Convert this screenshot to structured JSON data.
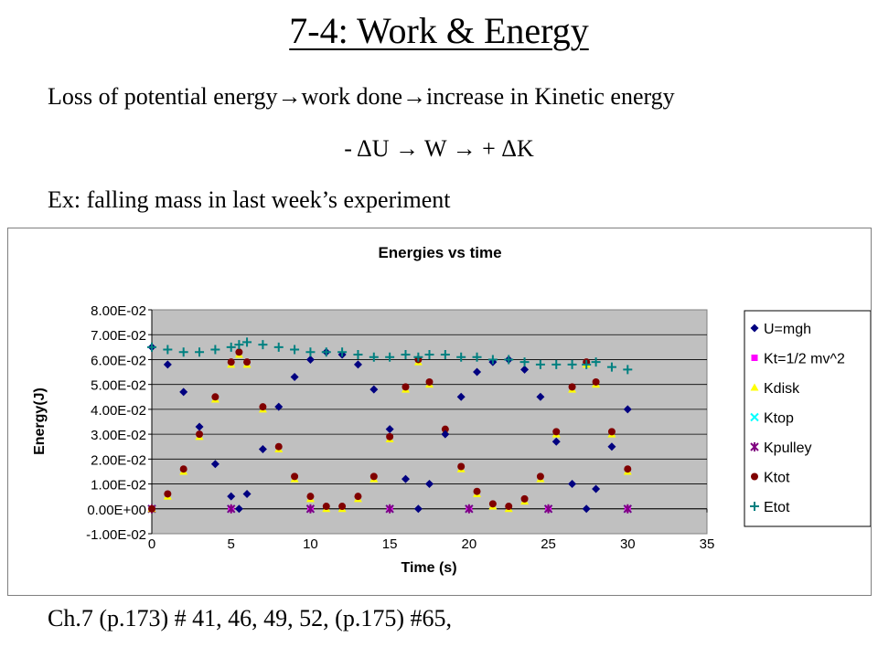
{
  "slide": {
    "title": "7-4: Work & Energy",
    "line1": "Loss of potential energy→work done→increase in Kinetic energy",
    "line2": "- ΔU → W → + ΔK",
    "line3": "Ex:  falling mass in last week’s experiment",
    "footer": "Ch.7 (p.173) # 41, 46, 49, 52, (p.175) #65,"
  },
  "chart_data": {
    "type": "scatter",
    "title": "Energies vs time",
    "xlabel": "Time (s)",
    "ylabel": "Energy(J)",
    "xlim": [
      0,
      35
    ],
    "ylim": [
      -0.01,
      0.08
    ],
    "xticks": [
      "0",
      "5",
      "10",
      "15",
      "20",
      "25",
      "30",
      "35"
    ],
    "yticks": [
      "-1.00E-02",
      "0.00E+00",
      "1.00E-02",
      "2.00E-02",
      "3.00E-02",
      "4.00E-02",
      "5.00E-02",
      "6.00E-02",
      "7.00E-02",
      "8.00E-02"
    ],
    "grid": "horizontal",
    "legend_position": "right",
    "plot_background": "#c0c0c0",
    "series": [
      {
        "name": "U=mgh",
        "marker": "diamond",
        "color": "#000080",
        "x": [
          0,
          1,
          2,
          3,
          4,
          5,
          5.5,
          6,
          7,
          8,
          9,
          10,
          11,
          12,
          13,
          14,
          15,
          16,
          16.8,
          17.5,
          18.5,
          19.5,
          20.5,
          21.5,
          22.5,
          23.5,
          24.5,
          25.5,
          26.5,
          27.4,
          28,
          29,
          30
        ],
        "y": [
          0.065,
          0.058,
          0.047,
          0.033,
          0.018,
          0.005,
          0.0,
          0.006,
          0.024,
          0.041,
          0.053,
          0.06,
          0.063,
          0.062,
          0.058,
          0.048,
          0.032,
          0.012,
          0.0,
          0.01,
          0.03,
          0.045,
          0.055,
          0.059,
          0.06,
          0.056,
          0.045,
          0.027,
          0.01,
          0.0,
          0.008,
          0.025,
          0.04
        ]
      },
      {
        "name": "Kt=1/2 mv^2",
        "marker": "square",
        "color": "#ff00ff",
        "x": [
          0,
          5,
          10,
          15,
          20,
          25,
          30
        ],
        "y": [
          0,
          0,
          0,
          0,
          0,
          0,
          0
        ]
      },
      {
        "name": "Kdisk",
        "marker": "triangle",
        "color": "#ffff00",
        "x": [
          0,
          1,
          2,
          3,
          4,
          5,
          5.5,
          6,
          7,
          8,
          9,
          10,
          11,
          12,
          13,
          14,
          15,
          16,
          16.8,
          17.5,
          18.5,
          19.5,
          20.5,
          21.5,
          22.5,
          23.5,
          24.5,
          25.5,
          26.5,
          27.4,
          28,
          29,
          30
        ],
        "y": [
          0.0,
          0.005,
          0.015,
          0.029,
          0.044,
          0.058,
          0.062,
          0.058,
          0.04,
          0.024,
          0.012,
          0.004,
          0.0,
          0.0,
          0.004,
          0.012,
          0.028,
          0.048,
          0.059,
          0.05,
          0.031,
          0.016,
          0.006,
          0.001,
          0.0,
          0.003,
          0.012,
          0.03,
          0.048,
          0.058,
          0.05,
          0.03,
          0.015
        ]
      },
      {
        "name": "Ktop",
        "marker": "x",
        "color": "#00ffff",
        "x": [
          0,
          5,
          10,
          15,
          20,
          25,
          30
        ],
        "y": [
          0,
          0,
          0,
          0,
          0,
          0,
          0
        ]
      },
      {
        "name": "Kpulley",
        "marker": "star",
        "color": "#800080",
        "x": [
          0,
          5,
          10,
          15,
          20,
          25,
          30
        ],
        "y": [
          0,
          0,
          0,
          0,
          0,
          0,
          0
        ]
      },
      {
        "name": "Ktot",
        "marker": "circle",
        "color": "#800000",
        "x": [
          0,
          1,
          2,
          3,
          4,
          5,
          5.5,
          6,
          7,
          8,
          9,
          10,
          11,
          12,
          13,
          14,
          15,
          16,
          16.8,
          17.5,
          18.5,
          19.5,
          20.5,
          21.5,
          22.5,
          23.5,
          24.5,
          25.5,
          26.5,
          27.4,
          28,
          29,
          30
        ],
        "y": [
          0.0,
          0.006,
          0.016,
          0.03,
          0.045,
          0.059,
          0.063,
          0.059,
          0.041,
          0.025,
          0.013,
          0.005,
          0.001,
          0.001,
          0.005,
          0.013,
          0.029,
          0.049,
          0.06,
          0.051,
          0.032,
          0.017,
          0.007,
          0.002,
          0.001,
          0.004,
          0.013,
          0.031,
          0.049,
          0.059,
          0.051,
          0.031,
          0.016
        ]
      },
      {
        "name": "Etot",
        "marker": "plus",
        "color": "#008080",
        "x": [
          0,
          1,
          2,
          3,
          4,
          5,
          5.5,
          6,
          7,
          8,
          9,
          10,
          11,
          12,
          13,
          14,
          15,
          16,
          16.8,
          17.5,
          18.5,
          19.5,
          20.5,
          21.5,
          22.5,
          23.5,
          24.5,
          25.5,
          26.5,
          27.4,
          28,
          29,
          30
        ],
        "y": [
          0.065,
          0.064,
          0.063,
          0.063,
          0.064,
          0.065,
          0.066,
          0.067,
          0.066,
          0.065,
          0.064,
          0.063,
          0.063,
          0.063,
          0.062,
          0.061,
          0.061,
          0.062,
          0.061,
          0.062,
          0.062,
          0.061,
          0.061,
          0.06,
          0.06,
          0.059,
          0.058,
          0.058,
          0.058,
          0.058,
          0.059,
          0.057,
          0.056
        ]
      }
    ]
  }
}
